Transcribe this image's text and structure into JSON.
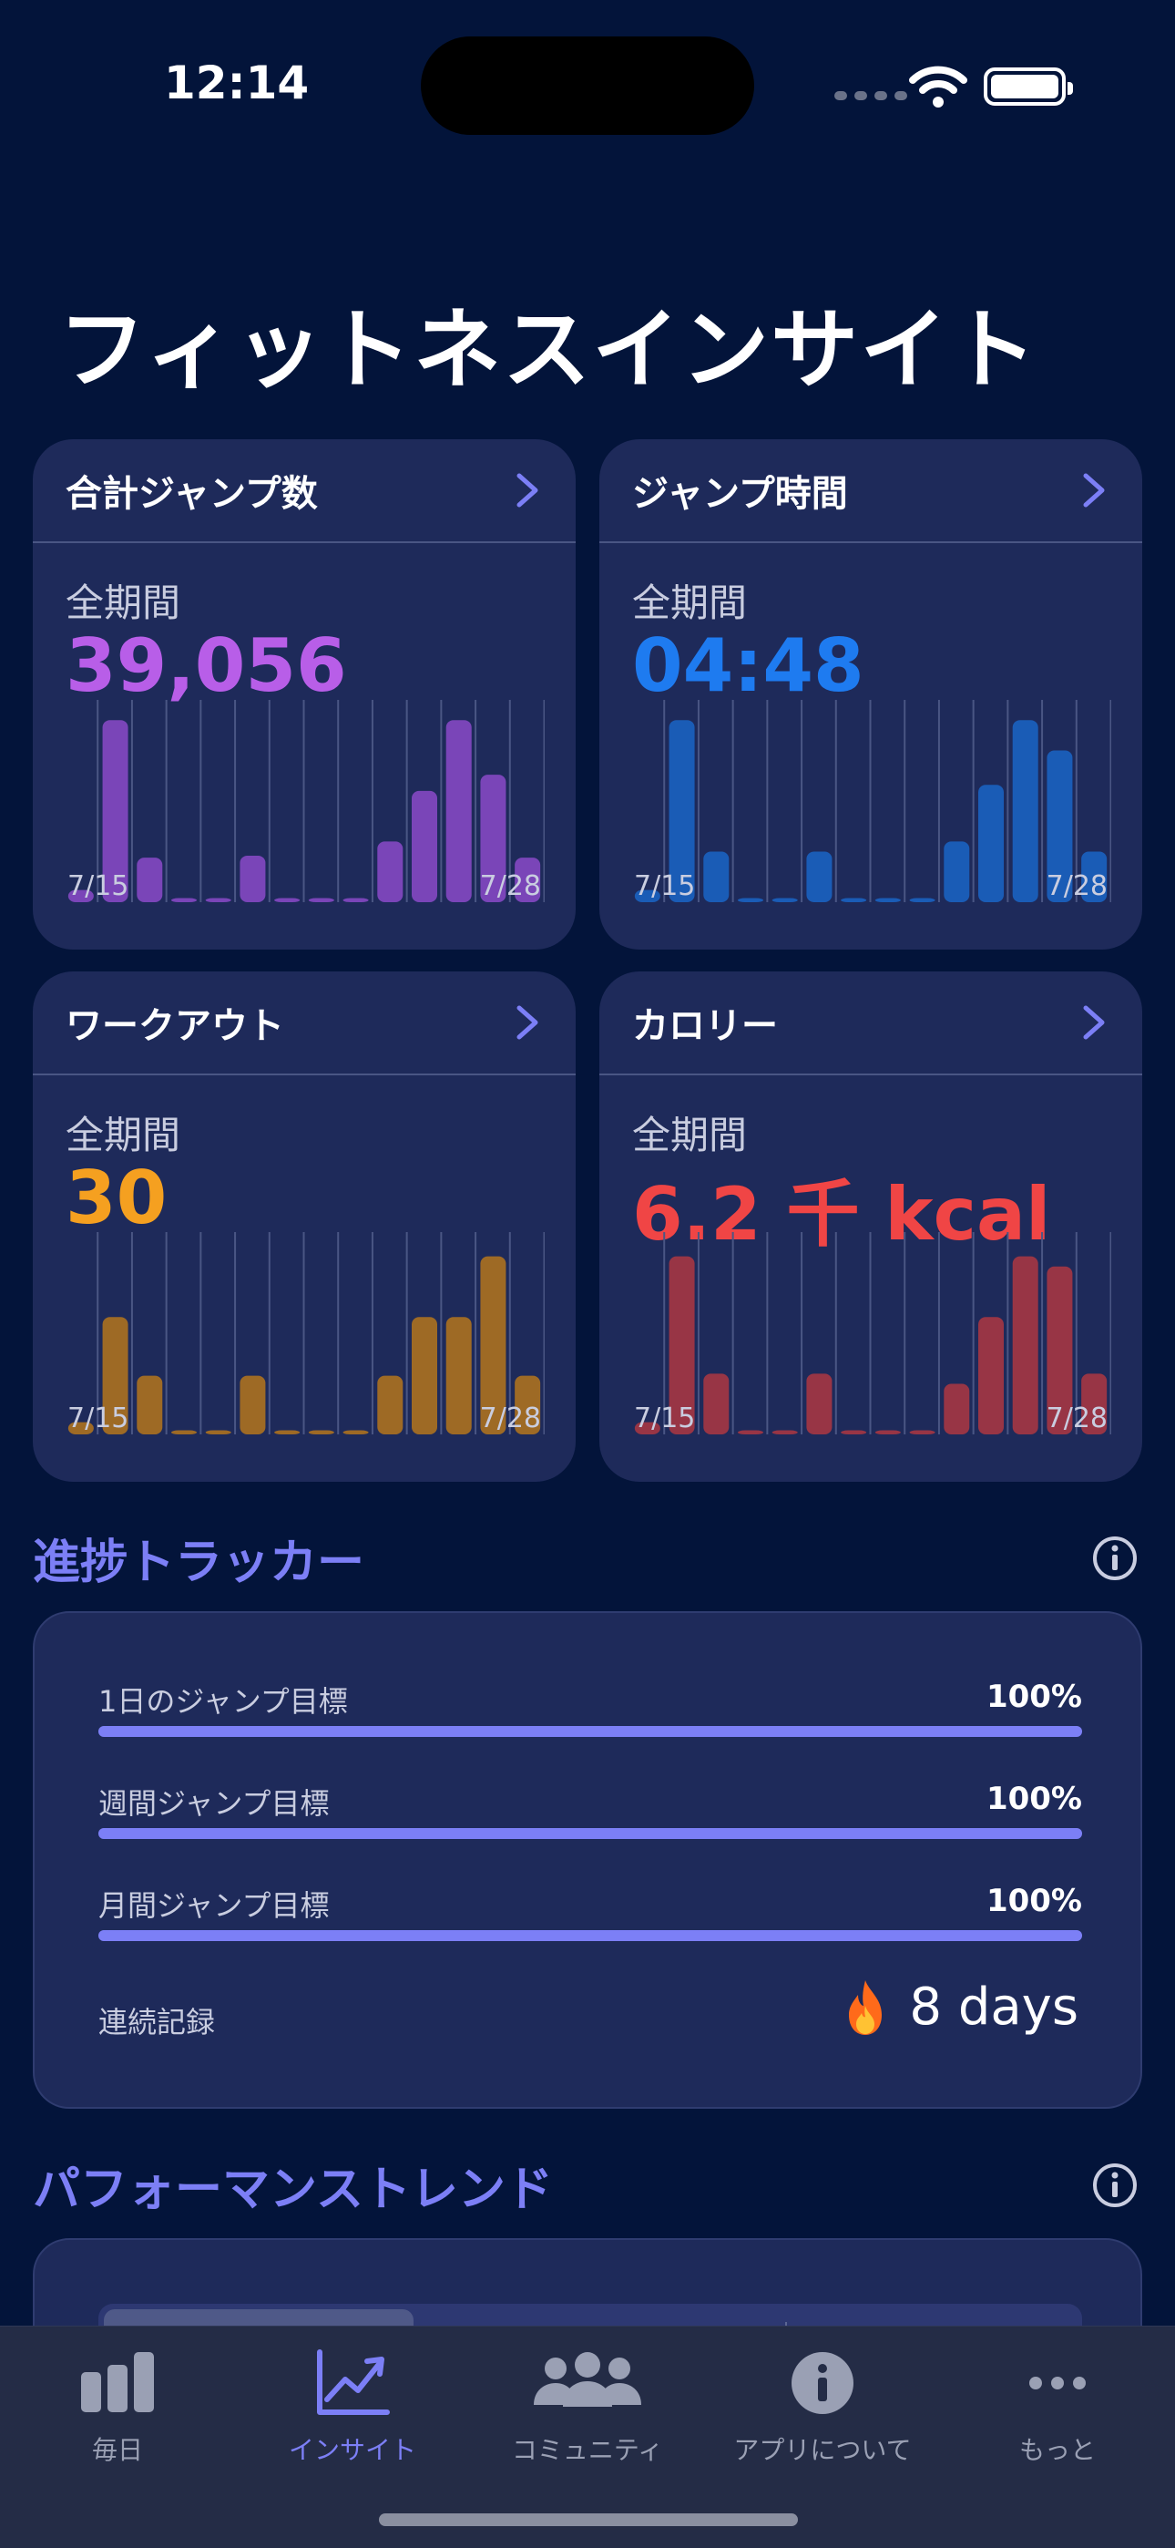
{
  "status": {
    "time": "12:14"
  },
  "header": {
    "title": "フィットネスインサイト"
  },
  "cards": [
    {
      "title": "合計ジャンプ数",
      "period": "全期間",
      "value": "39,056",
      "color": "#b85ee8",
      "bar_color": "#7a45b8",
      "start_label": "7/15",
      "end_label": "7/28",
      "bars": [
        0.06,
        0.9,
        0.22,
        0.02,
        0.02,
        0.23,
        0.02,
        0.02,
        0.02,
        0.3,
        0.55,
        0.9,
        0.63,
        0.22
      ]
    },
    {
      "title": "ジャンプ時間",
      "period": "全期間",
      "value": "04:48",
      "color": "#1e7bf0",
      "bar_color": "#1a5cb6",
      "start_label": "7/15",
      "end_label": "7/28",
      "bars": [
        0.06,
        0.9,
        0.25,
        0.02,
        0.02,
        0.25,
        0.02,
        0.02,
        0.02,
        0.3,
        0.58,
        0.9,
        0.75,
        0.25
      ]
    },
    {
      "title": "ワークアウト",
      "period": "全期間",
      "value": "30",
      "color": "#f5a020",
      "bar_color": "#9e6a25",
      "start_label": "7/15",
      "end_label": "7/28",
      "bars": [
        0.06,
        0.58,
        0.29,
        0.02,
        0.02,
        0.29,
        0.02,
        0.02,
        0.02,
        0.29,
        0.58,
        0.58,
        0.88,
        0.29
      ]
    },
    {
      "title": "カロリー",
      "period": "全期間",
      "value": "6.2 千 kcal",
      "color": "#f04545",
      "bar_color": "#983545",
      "start_label": "7/15",
      "end_label": "7/28",
      "bars": [
        0.06,
        0.88,
        0.3,
        0.02,
        0.02,
        0.3,
        0.02,
        0.02,
        0.02,
        0.25,
        0.58,
        0.88,
        0.83,
        0.3
      ]
    }
  ],
  "progress": {
    "title": "進捗トラッカー",
    "goals": [
      {
        "label": "1日のジャンプ目標",
        "percent": "100%",
        "fraction": 1.0
      },
      {
        "label": "週間ジャンプ目標",
        "percent": "100%",
        "fraction": 1.0
      },
      {
        "label": "月間ジャンプ目標",
        "percent": "100%",
        "fraction": 1.0
      }
    ],
    "streak_label": "連続記録",
    "streak_value": "8 days"
  },
  "trend": {
    "title": "パフォーマンストレンド"
  },
  "tabs": [
    {
      "label": "毎日",
      "icon": "bar-chart-icon"
    },
    {
      "label": "インサイト",
      "icon": "trend-chart-icon"
    },
    {
      "label": "コミュニティ",
      "icon": "people-icon"
    },
    {
      "label": "アプリについて",
      "icon": "info-icon"
    },
    {
      "label": "もっと",
      "icon": "ellipsis-icon"
    }
  ],
  "colors": {
    "accent": "#7c7ff6",
    "background": "#03143a",
    "card": "#1e2a5a"
  }
}
